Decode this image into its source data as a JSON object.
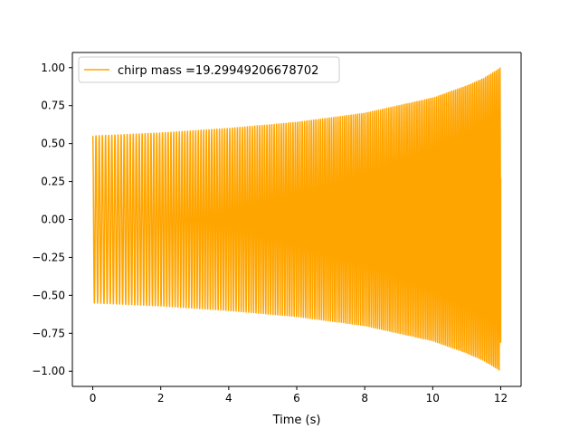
{
  "chart_data": {
    "type": "line",
    "title": "",
    "xlabel": "Time (s)",
    "ylabel": "",
    "xlim": [
      -0.6,
      12.6
    ],
    "ylim": [
      -1.1,
      1.1
    ],
    "xticks": [
      0,
      2,
      4,
      6,
      8,
      10,
      12
    ],
    "yticks": [
      1.0,
      0.75,
      0.5,
      0.25,
      0.0,
      -0.25,
      -0.5,
      -0.75,
      -1.0
    ],
    "xtick_labels": [
      "0",
      "2",
      "4",
      "6",
      "8",
      "10",
      "12"
    ],
    "ytick_labels": [
      "1.00",
      "0.75",
      "0.50",
      "0.25",
      "0.00",
      "−0.25",
      "−0.50",
      "−0.75",
      "−1.00"
    ],
    "grid": false,
    "legend_position": "upper-left",
    "series": [
      {
        "name": "chirp mass =19.29949206678702",
        "color": "#FFA500",
        "envelope_t": [
          0,
          2,
          4,
          6,
          8,
          10,
          11,
          11.5,
          12
        ],
        "envelope_amp": [
          0.55,
          0.57,
          0.6,
          0.64,
          0.7,
          0.8,
          0.88,
          0.93,
          1.0
        ],
        "t_end": 12.0,
        "end_value": 0.27
      }
    ]
  }
}
